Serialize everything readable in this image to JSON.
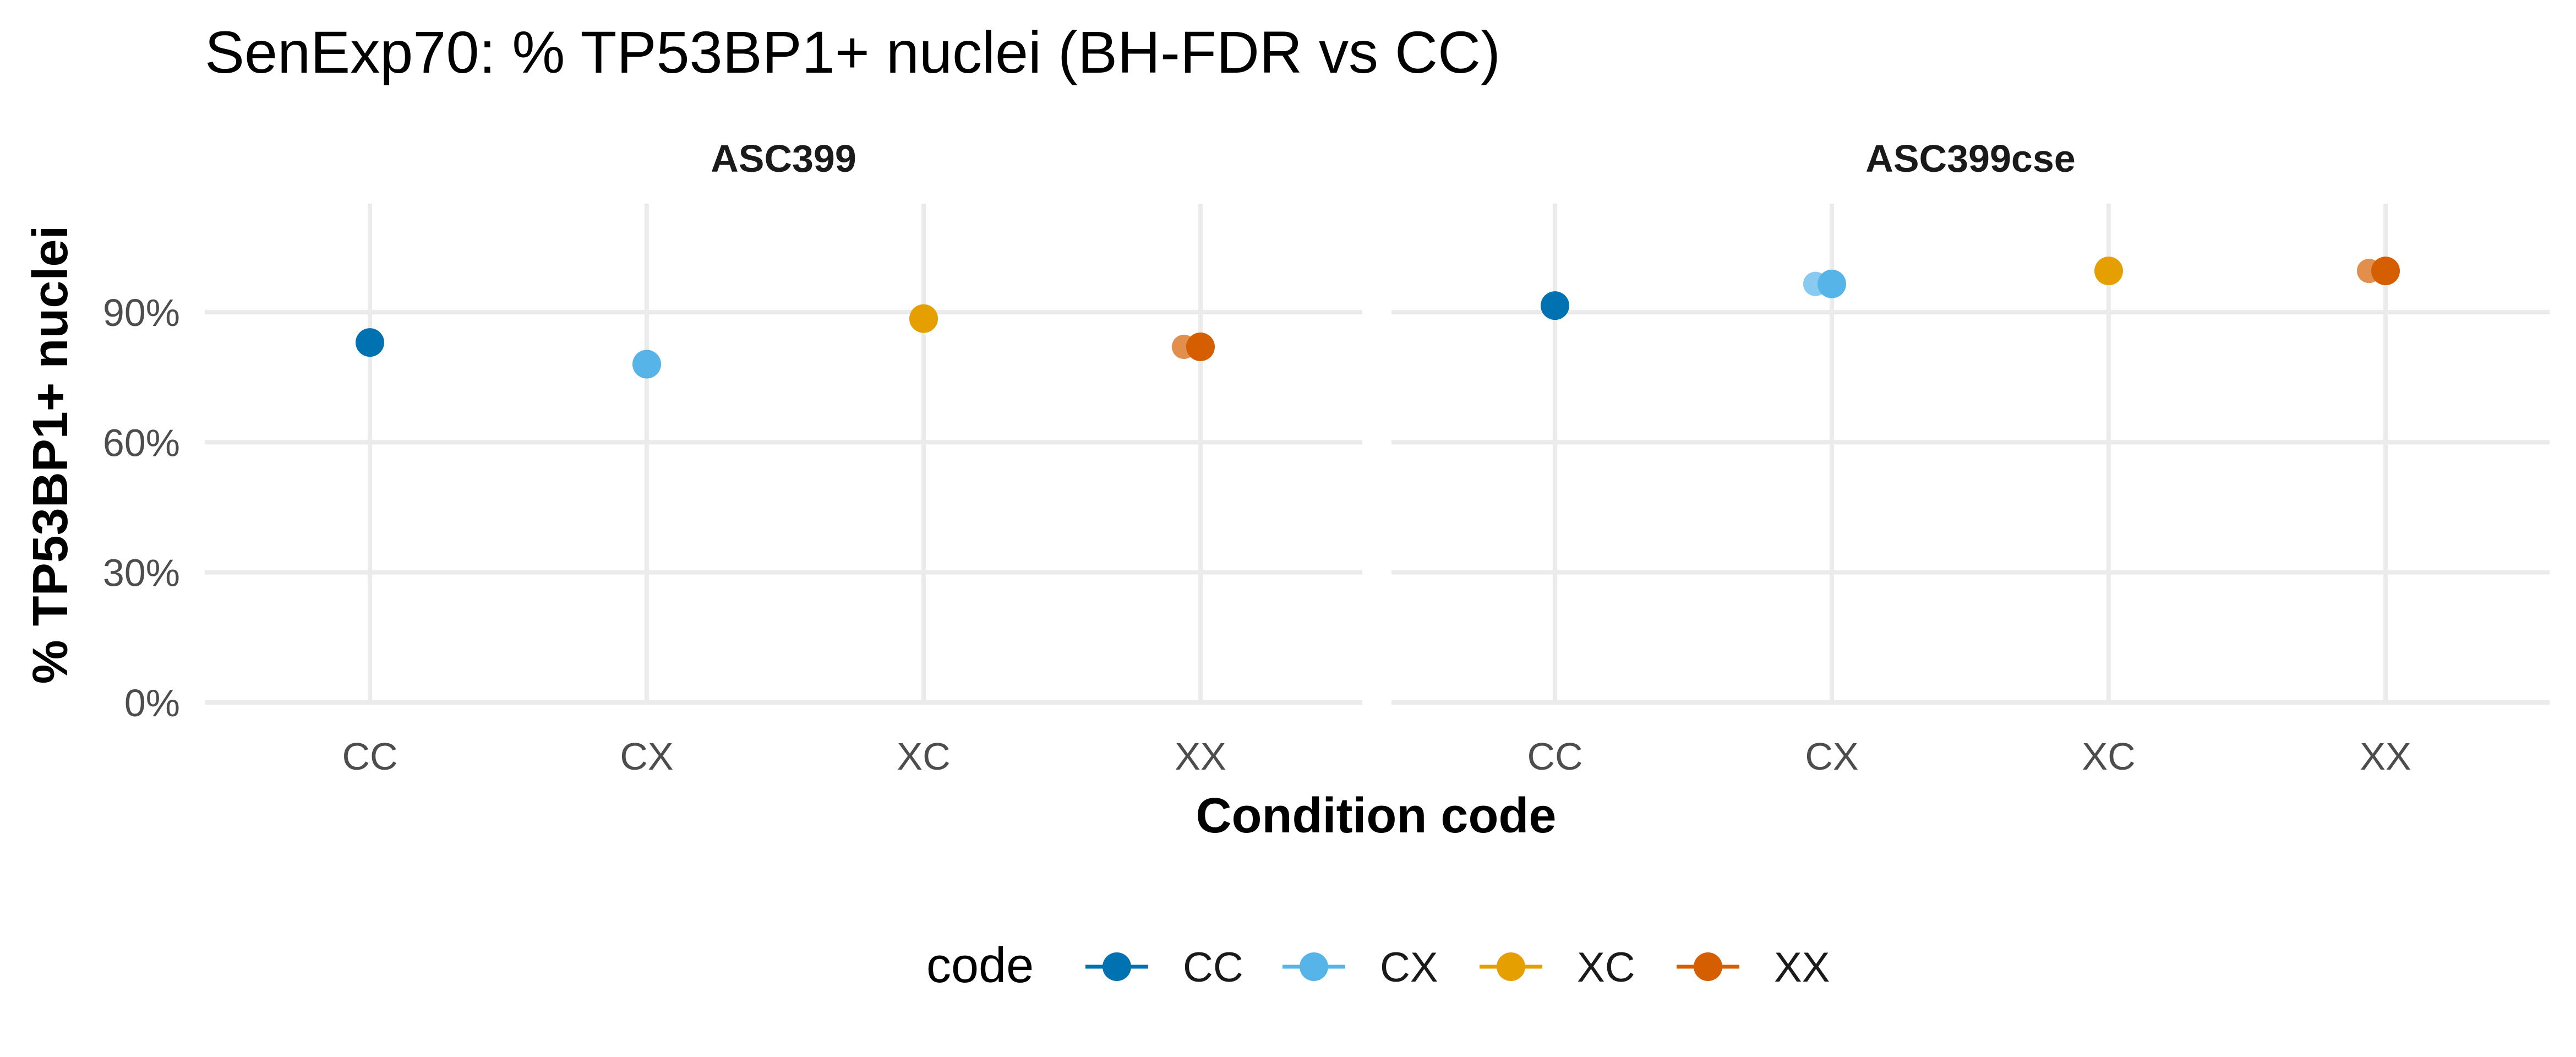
{
  "chart_data": {
    "type": "scatter",
    "title": "SenExp70: % TP53BP1+ nuclei (BH-FDR vs CC)",
    "xlabel": "Condition code",
    "ylabel": "% TP53BP1+ nuclei",
    "categories": [
      "CC",
      "CX",
      "XC",
      "XX"
    ],
    "ylim": [
      0,
      1.15
    ],
    "yticks": [
      0,
      0.3,
      0.6,
      0.9
    ],
    "ytick_labels": [
      "0%",
      "30%",
      "60%",
      "90%"
    ],
    "grid": true,
    "legend": {
      "title": "code",
      "position": "bottom",
      "entries": [
        "CC",
        "CX",
        "XC",
        "XX"
      ]
    },
    "colors": {
      "CC": "#0072B2",
      "CX": "#56B4E9",
      "XC": "#E69F00",
      "XX": "#D55E00"
    },
    "panels": [
      {
        "name": "ASC399",
        "points": [
          {
            "code": "CC",
            "values": [
              0.83
            ]
          },
          {
            "code": "CX",
            "values": [
              0.78
            ]
          },
          {
            "code": "XC",
            "values": [
              0.885
            ]
          },
          {
            "code": "XX",
            "values": [
              0.82,
              0.82
            ]
          }
        ]
      },
      {
        "name": "ASC399cse",
        "points": [
          {
            "code": "CC",
            "values": [
              0.915
            ]
          },
          {
            "code": "CX",
            "values": [
              0.965,
              0.965
            ]
          },
          {
            "code": "XC",
            "values": [
              0.995
            ]
          },
          {
            "code": "XX",
            "values": [
              0.995,
              0.995
            ]
          }
        ]
      }
    ]
  }
}
